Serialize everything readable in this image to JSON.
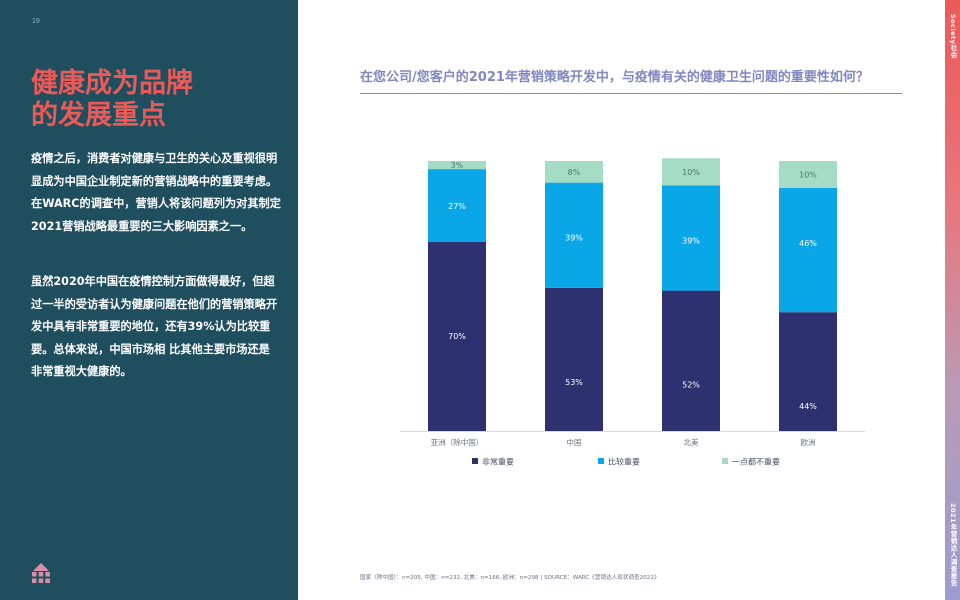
{
  "page": {
    "number": "19"
  },
  "headline": {
    "line1": "健康成为品牌",
    "line2": "的发展重点"
  },
  "paragraphs": [
    "疫情之后，消费者对健康与卫生的关心及重视很明显成为中国企业制定新的营销战略中的重要考虑。在WARC的调查中，营销人将该问题列为对其制定2021营销战略最重要的三大影响因素之一。",
    "虽然2020年中国在疫情控制方面做得最好，但超过一半的受访者认为健康问题在他们的营销策略开发中具有非常重要的地位，还有39%认为比较重要。总体来说，中国市场相 比其他主要市场还是非常重视大健康的。"
  ],
  "side_strip": {
    "top": "Society社会",
    "bottom": "2021年营销达人调查报告"
  },
  "colors": {
    "panel": "#1f4e5e",
    "headline": "#ec5a58",
    "title": "#8187c2",
    "series": [
      "#2d3170",
      "#0aa7e8",
      "#a5dcc6"
    ]
  },
  "chart_data": {
    "type": "bar",
    "stacked": true,
    "title": "在您公司/您客户的2021年营销策略开发中，与疫情有关的健康卫生问题的重要性如何？",
    "categories": [
      "亚洲（除中国）",
      "中国",
      "北美",
      "欧洲"
    ],
    "series": [
      {
        "name": "非常重要",
        "values": [
          70,
          53,
          52,
          44
        ],
        "labels": [
          "70%",
          "53%",
          "52%",
          "44%"
        ]
      },
      {
        "name": "比较重要",
        "values": [
          27,
          39,
          39,
          46
        ],
        "labels": [
          "27%",
          "39%",
          "39%",
          "46%"
        ]
      },
      {
        "name": "一点都不重要",
        "values": [
          3,
          8,
          10,
          10
        ],
        "labels": [
          "3%",
          "8%",
          "10%",
          "10%"
        ]
      }
    ],
    "ylim": [
      0,
      100
    ],
    "grid": false,
    "legend": "bottom"
  },
  "source_note": "国家（除中国）：n=205, 中国：n=232, 北美：n=166, 欧洲：n=298 | SOURCE：WARC《营销达人现状调查2021》"
}
